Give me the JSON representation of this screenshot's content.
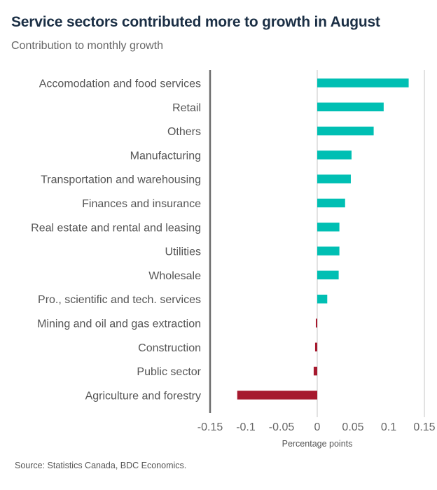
{
  "header": {
    "title": "Service sectors contributed more to growth in August",
    "subtitle": "Contribution to monthly growth"
  },
  "footer": {
    "source": "Source: Statistics Canada, BDC Economics."
  },
  "colors": {
    "positive": "#00bfb3",
    "negative": "#a6192e",
    "title": "#1b2f45"
  },
  "chart_data": {
    "type": "bar",
    "orientation": "horizontal",
    "title": "Service sectors contributed more to growth in August",
    "subtitle": "Contribution to monthly growth",
    "xlabel": "Percentage points",
    "ylabel": "",
    "xlim": [
      -0.15,
      0.15
    ],
    "xticks": [
      -0.15,
      -0.1,
      -0.05,
      0,
      0.05,
      0.1,
      0.15
    ],
    "xtick_labels": [
      "-0.15",
      "-0.1",
      "-0.05",
      "0",
      "0.05",
      "0.1",
      "0.15"
    ],
    "grid": "vertical at 0 and 0.15",
    "legend": "none",
    "categories": [
      "Accomodation and food services",
      "Retail",
      "Others",
      "Manufacturing",
      "Transportation and warehousing",
      "Finances and insurance",
      "Real estate and rental and leasing",
      "Utilities",
      "Wholesale",
      "Pro., scientific and tech. services",
      "Mining and oil and gas extraction",
      "Construction",
      "Public sector",
      "Agriculture and forestry"
    ],
    "values": [
      0.128,
      0.093,
      0.079,
      0.048,
      0.047,
      0.039,
      0.031,
      0.031,
      0.03,
      0.014,
      -0.002,
      -0.003,
      -0.005,
      -0.112
    ],
    "source": "Source: Statistics Canada, BDC Economics."
  }
}
